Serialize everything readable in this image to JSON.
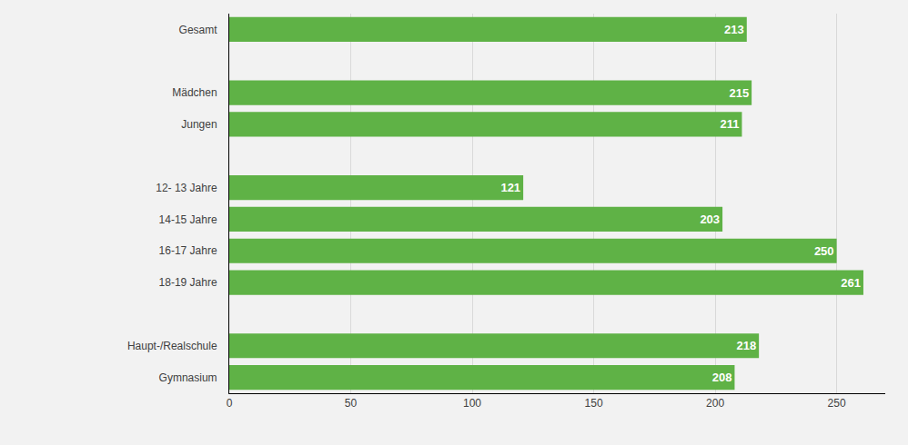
{
  "chart_data": {
    "type": "bar",
    "orientation": "horizontal",
    "categories": [
      "Gesamt",
      null,
      "Mädchen",
      "Jungen",
      null,
      "12- 13 Jahre",
      "14-15 Jahre",
      "16-17 Jahre",
      "18-19 Jahre",
      null,
      "Haupt-/Realschule",
      "Gymnasium"
    ],
    "values": [
      213,
      null,
      215,
      211,
      null,
      121,
      203,
      250,
      261,
      null,
      218,
      208
    ],
    "color": "#5fb246",
    "xlim": [
      0,
      270
    ],
    "xticks": [
      0,
      50,
      100,
      150,
      200,
      250
    ],
    "grid": true,
    "data_labels": true
  }
}
